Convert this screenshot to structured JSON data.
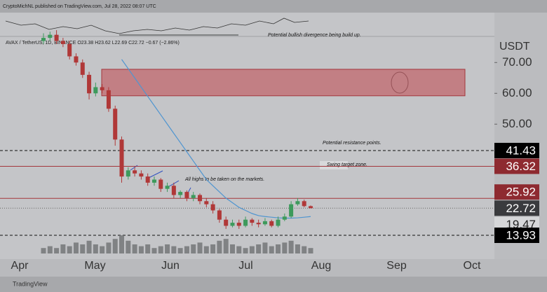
{
  "chart_data": {
    "type": "candlestick",
    "header": "CryptoMichNL published on TradingView.com, Jul 28, 2022 08:07 UTC",
    "legend": "AVAX / TetherUS, 1D, BINANCE  O23.38  H23.62  L22.69  C22.72  −0.67 (−2.86%)",
    "currency": "USDT",
    "footer": "TradingView",
    "x_axis_labels": [
      "Apr",
      "May",
      "Jun",
      "Jul",
      "Aug",
      "Sep",
      "Oct"
    ],
    "ylim": [
      6.2,
      86.2
    ],
    "yticks": [
      {
        "value": 70,
        "label": "70.00"
      },
      {
        "value": 60,
        "label": "60.00"
      },
      {
        "value": 50,
        "label": "50.00"
      }
    ],
    "up_color": "#3d9a5c",
    "down_color": "#b03838",
    "open": [
      77,
      78,
      79,
      77,
      76,
      72,
      70,
      66,
      60,
      62,
      61,
      55,
      45,
      33,
      35,
      34,
      33,
      31,
      32,
      29,
      30,
      27,
      28,
      26,
      27,
      25,
      24,
      22,
      19,
      17,
      18,
      17,
      19,
      18,
      17.5,
      18.5,
      17,
      19,
      20,
      24,
      25,
      23.38
    ],
    "high": [
      79.5,
      80,
      80.5,
      78,
      77,
      73,
      71,
      67,
      63.5,
      63,
      62,
      56,
      46,
      36,
      36,
      35,
      34,
      33,
      32.5,
      31,
      31,
      28.5,
      28.5,
      28,
      27.5,
      26,
      25,
      22.5,
      20,
      19,
      19,
      20,
      19.5,
      19,
      19.5,
      19,
      20,
      21,
      25,
      26,
      25.5,
      23.62
    ],
    "low": [
      76,
      77,
      76,
      75,
      71,
      69,
      65,
      58,
      59,
      60,
      54,
      43,
      31,
      32,
      33,
      32,
      30,
      30,
      28,
      28,
      26,
      26,
      25,
      25,
      24,
      23,
      21,
      18,
      16,
      16.5,
      16,
      16.5,
      17,
      16.5,
      17,
      16.5,
      16.5,
      18.5,
      19.5,
      23.5,
      23,
      22.69
    ],
    "close": [
      78,
      79,
      77,
      76,
      72,
      70,
      66,
      60,
      62,
      61,
      55,
      45,
      33,
      35,
      34,
      33,
      31,
      32,
      29,
      30,
      27,
      28,
      26,
      27,
      25,
      24,
      22,
      19,
      17,
      18,
      17,
      19,
      18,
      17.5,
      18.5,
      17,
      19,
      20,
      24,
      25,
      23.4,
      22.72
    ],
    "ma": {
      "color": "#4f95d0",
      "values": [
        null,
        null,
        null,
        null,
        null,
        null,
        null,
        null,
        null,
        null,
        null,
        null,
        71,
        68,
        65,
        62,
        59,
        56,
        53,
        50,
        47,
        44,
        41,
        38,
        35,
        32,
        30,
        28,
        26,
        24.5,
        23,
        22,
        21,
        20.3,
        20,
        19.8,
        19.6,
        19.5,
        19.5,
        19.6,
        19.8,
        20
      ]
    },
    "volume": {
      "color": "#6f7073",
      "values": [
        3,
        4,
        3,
        5,
        4,
        6,
        5,
        7,
        5,
        4,
        6,
        8,
        10,
        7,
        5,
        4,
        5,
        3,
        4,
        5,
        4,
        3,
        4,
        5,
        6,
        4,
        5,
        7,
        8,
        5,
        4,
        3,
        4,
        5,
        6,
        4,
        5,
        6,
        7,
        5,
        4,
        3
      ]
    },
    "zone": {
      "range": [
        59.2,
        67.8
      ],
      "color": "#c2676d"
    },
    "levels": [
      {
        "value": 41.43,
        "color": "#111111",
        "style": "dashed",
        "label_bg": "#000000"
      },
      {
        "value": 36.32,
        "color": "#a3363c",
        "style": "solid",
        "label_bg": "#8e2a30"
      },
      {
        "value": 25.92,
        "color": "#a3363c",
        "style": "solid",
        "label_bg": "#8e2a30"
      },
      {
        "value": 22.72,
        "color": "#666666",
        "style": "dotted",
        "label_bg": "#3a3b3e"
      },
      {
        "value": 19.47,
        "color": "#999999",
        "style": "none",
        "label_bg": "#d6d7d9"
      },
      {
        "value": 13.93,
        "color": "#111111",
        "style": "dashed",
        "label_bg": "#000000"
      }
    ],
    "annotations": [
      "Potential bullish divergence being build up.",
      "Potential resistance points.",
      "Swing target zone.",
      "All highs to be taken on the markets."
    ]
  }
}
